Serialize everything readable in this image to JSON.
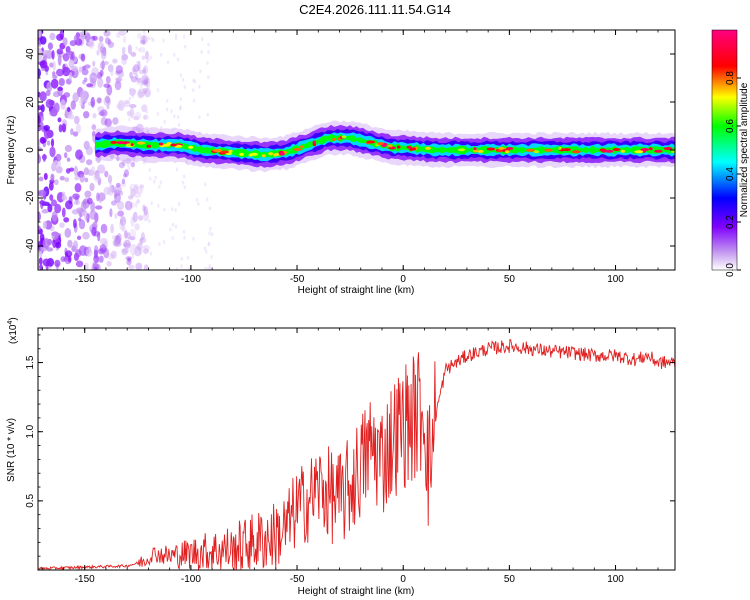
{
  "title": "C2E4.2026.111.11.54.G14",
  "chart_data": [
    {
      "type": "heatmap",
      "xlabel": "Height of straight line (km)",
      "ylabel": "Frequency (Hz)",
      "xlim": [
        -172,
        128
      ],
      "ylim": [
        -50,
        50
      ],
      "x_ticks": [
        -150,
        -100,
        -50,
        0,
        50,
        100
      ],
      "y_ticks": [
        -40,
        -20,
        0,
        20,
        40
      ],
      "colorbar": {
        "label": "Normalized spectral amplitude",
        "range": [
          0,
          1
        ],
        "ticks": [
          0.0,
          0.2,
          0.4,
          0.6,
          0.8
        ],
        "tick_labels": [
          "0.0",
          "0.2",
          "0.4",
          "0.6",
          "0.8"
        ],
        "colormap": [
          "#ffffff",
          "#c090f0",
          "#8000ff",
          "#0000ff",
          "#00ffff",
          "#00ff00",
          "#ffff00",
          "#ff0000",
          "#ff0080"
        ]
      },
      "ridge": {
        "x": [
          -145,
          -135,
          -120,
          -105,
          -95,
          -80,
          -65,
          -55,
          -45,
          -35,
          -25,
          -15,
          -5,
          0,
          15,
          30,
          50,
          75,
          100,
          128
        ],
        "frequency": [
          2,
          3,
          2,
          2,
          0,
          -1,
          -2,
          -1,
          2,
          5,
          5,
          3,
          1,
          1,
          0,
          0,
          0,
          0,
          0,
          0
        ]
      },
      "noise_region_x": [
        -172,
        -130
      ]
    },
    {
      "type": "line",
      "xlabel": "Height of straight line (km)",
      "ylabel": "SNR (10 * v/v)",
      "scale_label": "(x10",
      "scale_exponent": "4",
      "xlim": [
        -172,
        128
      ],
      "ylim": [
        0,
        1.75
      ],
      "x_ticks": [
        -150,
        -100,
        -50,
        0,
        50,
        100
      ],
      "y_ticks": [
        0.5,
        1.0,
        1.5
      ],
      "y_tick_labels": [
        "0.5",
        "1.0",
        "1.5"
      ],
      "color": "#e02020",
      "series": [
        {
          "x": [
            -172,
            -150,
            -130,
            -125,
            -120,
            -118,
            -110,
            -100,
            -90,
            -80,
            -70,
            -60,
            -55,
            -50,
            -45,
            -40,
            -35,
            -30,
            -25,
            -20,
            -15,
            -10,
            -5,
            0,
            5,
            10,
            12,
            15,
            20,
            30,
            40,
            50,
            60,
            70,
            80,
            90,
            100,
            110,
            115,
            120,
            128
          ],
          "values": [
            0.01,
            0.02,
            0.03,
            0.05,
            0.08,
            0.12,
            0.1,
            0.12,
            0.14,
            0.15,
            0.2,
            0.25,
            0.3,
            0.45,
            0.5,
            0.6,
            0.55,
            0.5,
            0.6,
            0.75,
            0.9,
            0.8,
            0.95,
            1.05,
            1.1,
            1.2,
            0.7,
            1.1,
            1.45,
            1.55,
            1.6,
            1.62,
            1.6,
            1.58,
            1.57,
            1.55,
            1.55,
            1.52,
            1.55,
            1.5,
            1.5
          ]
        }
      ]
    }
  ]
}
